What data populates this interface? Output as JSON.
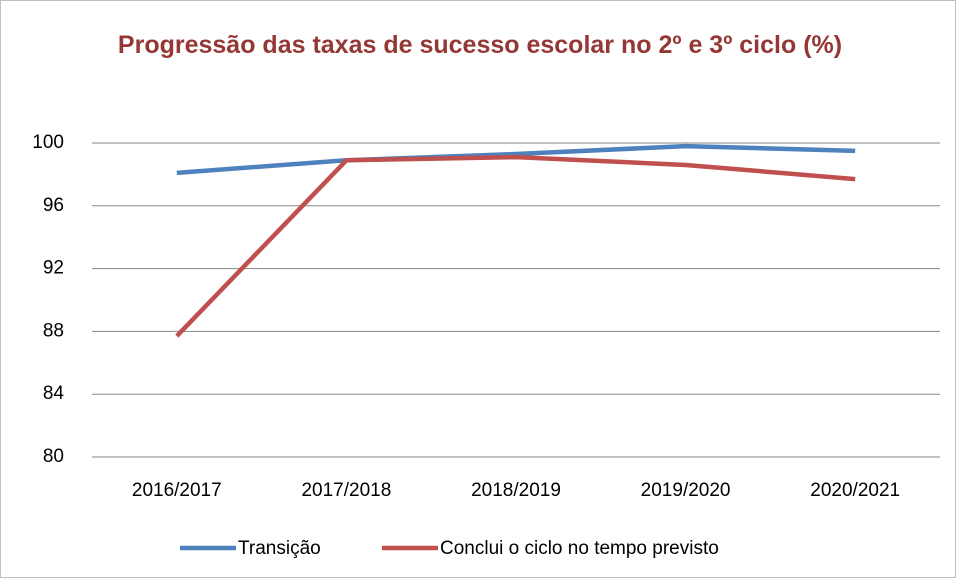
{
  "chart_data": {
    "type": "line",
    "title": "Progressão das taxas de sucesso escolar no 2º e 3º ciclo (%)",
    "categories": [
      "2016/2017",
      "2017/2018",
      "2018/2019",
      "2019/2020",
      "2020/2021"
    ],
    "series": [
      {
        "name": "Transição",
        "color": "#4f81bd",
        "values": [
          98.1,
          98.9,
          99.3,
          99.8,
          99.5
        ]
      },
      {
        "name": "Conclui o ciclo no tempo previsto",
        "color": "#c0504d",
        "values": [
          87.7,
          98.9,
          99.1,
          98.6,
          97.7
        ]
      }
    ],
    "ylim": [
      80,
      100
    ],
    "yticks": [
      80,
      84,
      88,
      92,
      96,
      100
    ],
    "grid": true,
    "legend": "bottom"
  }
}
